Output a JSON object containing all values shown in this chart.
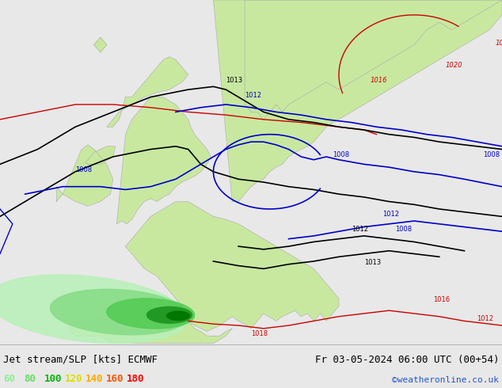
{
  "title_left": "Jet stream/SLP [kts] ECMWF",
  "title_right": "Fr 03-05-2024 06:00 UTC (00+54)",
  "copyright": "©weatheronline.co.uk",
  "legend_values": [
    "60",
    "80",
    "100",
    "120",
    "140",
    "160",
    "180"
  ],
  "legend_colors": [
    "#90ee90",
    "#66dd66",
    "#00bb00",
    "#dddd00",
    "#ffaa00",
    "#ff5500",
    "#ff0000"
  ],
  "bg_color": "#e8e8e8",
  "sea_color": "#d8d8d8",
  "land_color": "#c8e8a0",
  "coast_color": "#aaaaaa",
  "font_size_title": 9,
  "font_size_legend": 9,
  "col_black": "#000000",
  "col_blue": "#0000cc",
  "col_red": "#cc0000",
  "figsize": [
    6.34,
    4.9
  ],
  "dpi": 100,
  "xlim": [
    -15,
    25
  ],
  "ylim": [
    42,
    65
  ],
  "jet_light": "#b8f0b8",
  "jet_mid": "#55cc55",
  "jet_dark": "#007700",
  "jet_darkest": "#004400"
}
